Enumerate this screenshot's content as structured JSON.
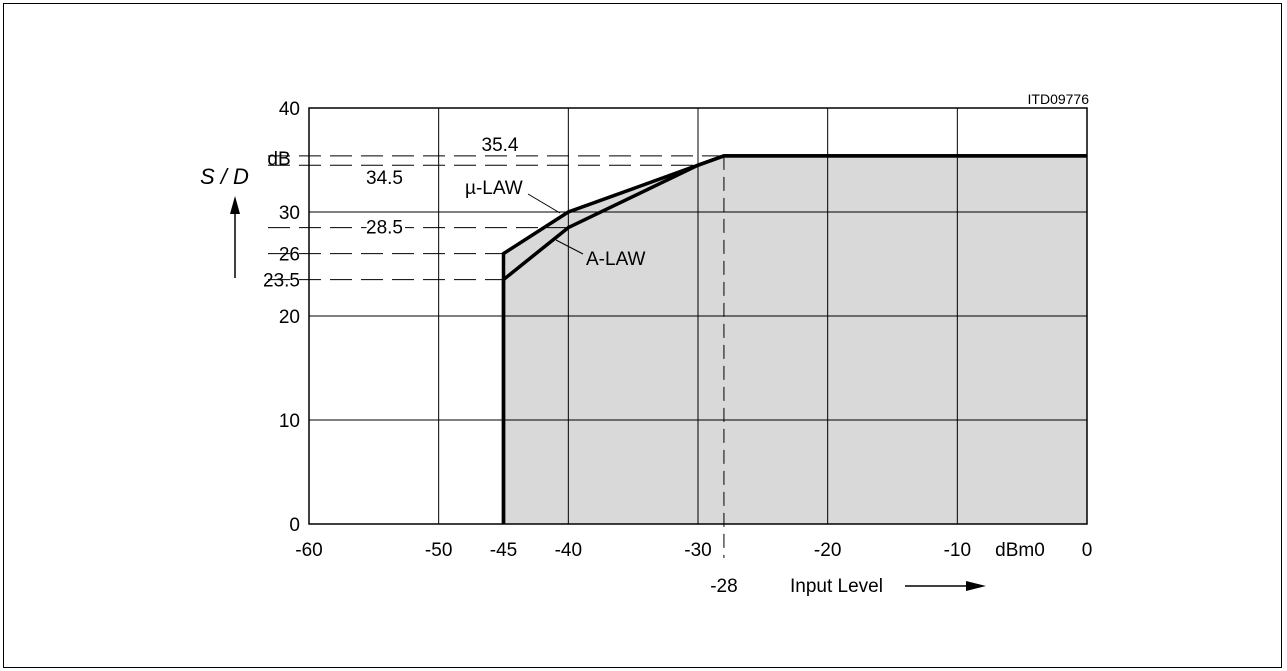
{
  "chart_data": {
    "type": "line",
    "code_label": "ITD09776",
    "ylabel": "S / D",
    "y_unit": "dB",
    "xlabel": "Input Level",
    "x_unit": "dBm0",
    "xlim": [
      -60,
      0
    ],
    "ylim": [
      0,
      40
    ],
    "x_ticks": [
      "-60",
      "-50",
      "-45",
      "-40",
      "-30",
      "-20",
      "-10",
      "0"
    ],
    "x_tick_values": [
      -60,
      -50,
      -45,
      -40,
      -30,
      -20,
      -10,
      0
    ],
    "y_ticks": [
      "0",
      "10",
      "20",
      "30",
      "40"
    ],
    "y_tick_values": [
      0,
      10,
      20,
      30,
      40
    ],
    "grid_x": [
      -50,
      -40,
      -30,
      -20,
      -10
    ],
    "grid_y": [
      10,
      20,
      30
    ],
    "series": [
      {
        "name": "µ-LAW",
        "x": [
          -45,
          -45,
          -40,
          -30,
          -28,
          0
        ],
        "y": [
          0,
          26,
          30,
          34.5,
          35.4,
          35.4
        ]
      },
      {
        "name": "A-LAW",
        "x": [
          -45,
          -45,
          -40,
          -30,
          -28,
          0
        ],
        "y": [
          0,
          23.5,
          28.5,
          34.5,
          35.4,
          35.4
        ]
      }
    ],
    "shaded_region": "below µ-LAW curve",
    "annotations": {
      "y_levels": [
        {
          "label": "35.4",
          "value": 35.4,
          "x_end": -28
        },
        {
          "label": "34.5",
          "value": 34.5,
          "x_end": -30
        },
        {
          "label": "28.5",
          "value": 28.5,
          "x_end": -40
        },
        {
          "label": "26",
          "value": 26,
          "x_end": -45
        },
        {
          "label": "23.5",
          "value": 23.5,
          "x_end": -45
        }
      ],
      "x_levels": [
        {
          "label": "-28",
          "value": -28
        }
      ]
    },
    "colors": {
      "fill": "#d9d9d9",
      "line": "#000000"
    }
  }
}
